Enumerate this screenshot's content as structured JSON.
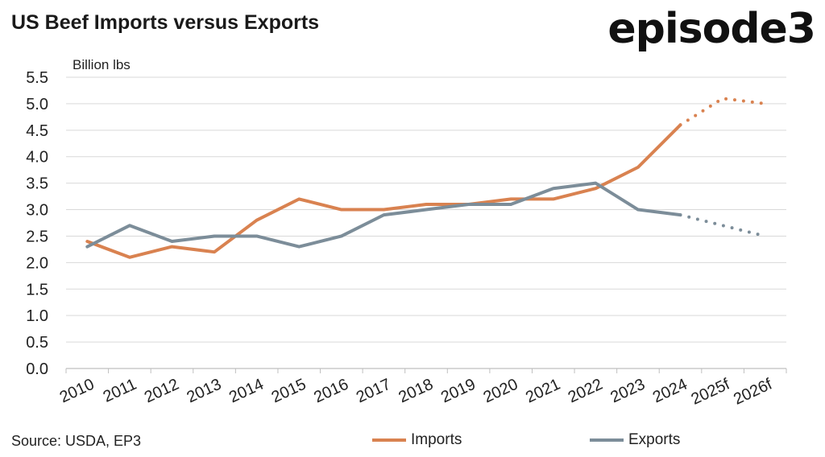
{
  "header": {
    "title": "US Beef Imports versus Exports",
    "logo_text": "episode3"
  },
  "footer": {
    "source": "Source: USDA, EP3"
  },
  "colors": {
    "imports": "#d98250",
    "exports": "#7c8d99",
    "grid": "#d9d9d9",
    "axis": "#bfbfbf"
  },
  "chart_data": {
    "type": "line",
    "title": "US Beef Imports versus Exports",
    "ylabel": "Billion lbs",
    "xlabel": "",
    "ylim": [
      0,
      5.5
    ],
    "yticks": [
      "0.0",
      "0.5",
      "1.0",
      "1.5",
      "2.0",
      "2.5",
      "3.0",
      "3.5",
      "4.0",
      "4.5",
      "5.0",
      "5.5"
    ],
    "categories": [
      "2010",
      "2011",
      "2012",
      "2013",
      "2014",
      "2015",
      "2016",
      "2017",
      "2018",
      "2019",
      "2020",
      "2021",
      "2022",
      "2023",
      "2024",
      "2025f",
      "2026f"
    ],
    "grid": true,
    "legend_position": "bottom",
    "series": [
      {
        "name": "Imports",
        "values": [
          2.4,
          2.1,
          2.3,
          2.2,
          2.8,
          3.2,
          3.0,
          3.0,
          3.1,
          3.1,
          3.2,
          3.2,
          3.4,
          3.8,
          4.6,
          5.1,
          5.0
        ],
        "forecast_from_index": 14
      },
      {
        "name": "Exports",
        "values": [
          2.3,
          2.7,
          2.4,
          2.5,
          2.5,
          2.3,
          2.5,
          2.9,
          3.0,
          3.1,
          3.1,
          3.4,
          3.5,
          3.0,
          2.9,
          2.7,
          2.5
        ],
        "forecast_from_index": 14
      }
    ]
  }
}
